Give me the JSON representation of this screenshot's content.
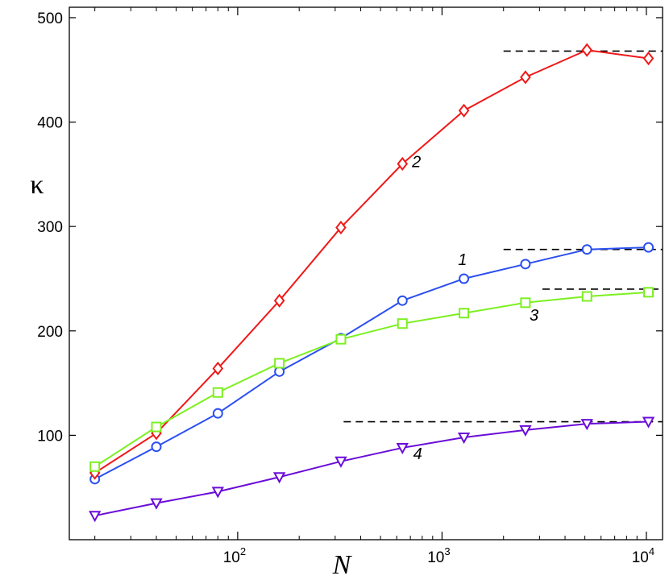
{
  "chart_data": {
    "type": "line",
    "title": "",
    "xlabel": "N",
    "ylabel": "κ",
    "xscale": "log",
    "xlim": [
      15,
      12000
    ],
    "ylim": [
      0,
      510
    ],
    "grid": false,
    "x_ticks": [
      {
        "value": 100,
        "base": "10",
        "exp": "2"
      },
      {
        "value": 1000,
        "base": "10",
        "exp": "3"
      },
      {
        "value": 10000,
        "base": "10",
        "exp": "4"
      }
    ],
    "y_ticks": [
      100,
      200,
      300,
      400,
      500
    ],
    "series": [
      {
        "label": "1",
        "color": "#2b4ff0",
        "marker": "circle",
        "x": [
          20,
          40,
          80,
          160,
          320,
          640,
          1280,
          2560,
          5120,
          10240
        ],
        "y": [
          58,
          89,
          121,
          161,
          193,
          229,
          250,
          264,
          278,
          280
        ],
        "label_at": {
          "x": 1260,
          "y": 263
        }
      },
      {
        "label": "2",
        "color": "#f01818",
        "marker": "diamond",
        "x": [
          20,
          40,
          80,
          160,
          320,
          640,
          1280,
          2560,
          5120,
          10240
        ],
        "y": [
          64,
          102,
          164,
          229,
          299,
          360,
          411,
          443,
          469,
          461
        ],
        "label_at": {
          "x": 750,
          "y": 357
        }
      },
      {
        "label": "3",
        "color": "#7cf020",
        "marker": "square",
        "x": [
          20,
          40,
          80,
          160,
          320,
          640,
          1280,
          2560,
          5120,
          10240
        ],
        "y": [
          70,
          108,
          141,
          169,
          192,
          207,
          217,
          227,
          233,
          237
        ],
        "label_at": {
          "x": 2820,
          "y": 210
        }
      },
      {
        "label": "4",
        "color": "#6a0cd8",
        "marker": "triangle-down",
        "x": [
          20,
          40,
          80,
          160,
          320,
          640,
          1280,
          2560,
          5120,
          10240
        ],
        "y": [
          23,
          35,
          46,
          60,
          75,
          88,
          98,
          105,
          111,
          113
        ],
        "label_at": {
          "x": 760,
          "y": 77
        }
      }
    ],
    "asymptotes": [
      {
        "y": 468,
        "x_from": 2000,
        "x_to": 12000,
        "style": "dashed",
        "color": "#000000"
      },
      {
        "y": 278,
        "x_from": 2000,
        "x_to": 12000,
        "style": "dashed",
        "color": "#000000"
      },
      {
        "y": 240,
        "x_from": 3100,
        "x_to": 12000,
        "style": "dashed",
        "color": "#000000"
      },
      {
        "y": 113,
        "x_from": 330,
        "x_to": 12000,
        "style": "dashed",
        "color": "#000000"
      }
    ]
  }
}
